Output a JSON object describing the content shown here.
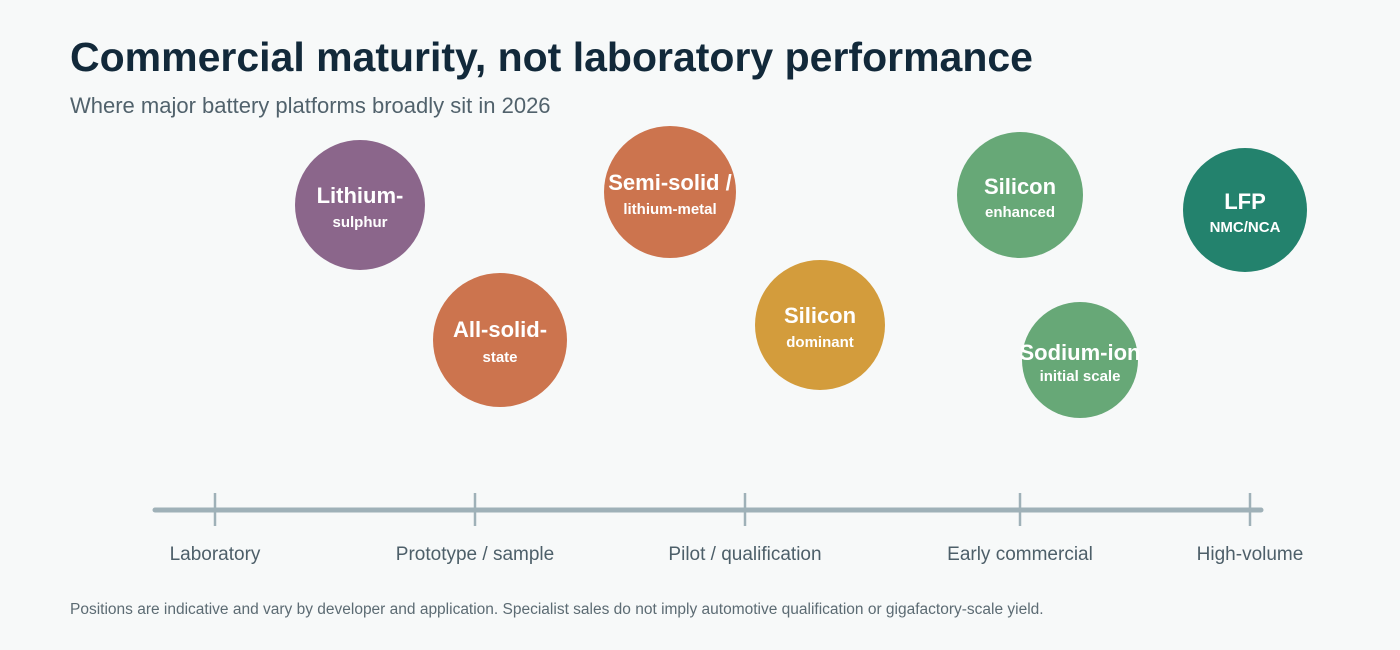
{
  "title": "Commercial maturity, not laboratory performance",
  "subtitle": "Where major battery platforms broadly sit in 2026",
  "stages": [
    {
      "label": "Laboratory"
    },
    {
      "label": "Prototype / sample"
    },
    {
      "label": "Pilot / qualification"
    },
    {
      "label": "Early commercial"
    },
    {
      "label": "High-volume"
    }
  ],
  "platforms": [
    {
      "name": "Lithium-",
      "detail": "sulphur",
      "color": "#8b668b"
    },
    {
      "name": "All-solid-",
      "detail": "state",
      "color": "#cc744e"
    },
    {
      "name": "Semi-solid /",
      "detail": "lithium-metal",
      "color": "#cc744e"
    },
    {
      "name": "Silicon",
      "detail": "dominant",
      "color": "#d39c3c"
    },
    {
      "name": "Silicon",
      "detail": "enhanced",
      "color": "#67a877"
    },
    {
      "name": "Sodium-ion",
      "detail": "initial scale",
      "color": "#67a877"
    },
    {
      "name": "LFP",
      "detail": "NMC/NCA",
      "color": "#23826d"
    }
  ],
  "axis_color": "#9fb1b8",
  "footnote": "Positions are indicative and vary by developer and application. Specialist sales do not imply automotive qualification or gigafactory-scale yield."
}
